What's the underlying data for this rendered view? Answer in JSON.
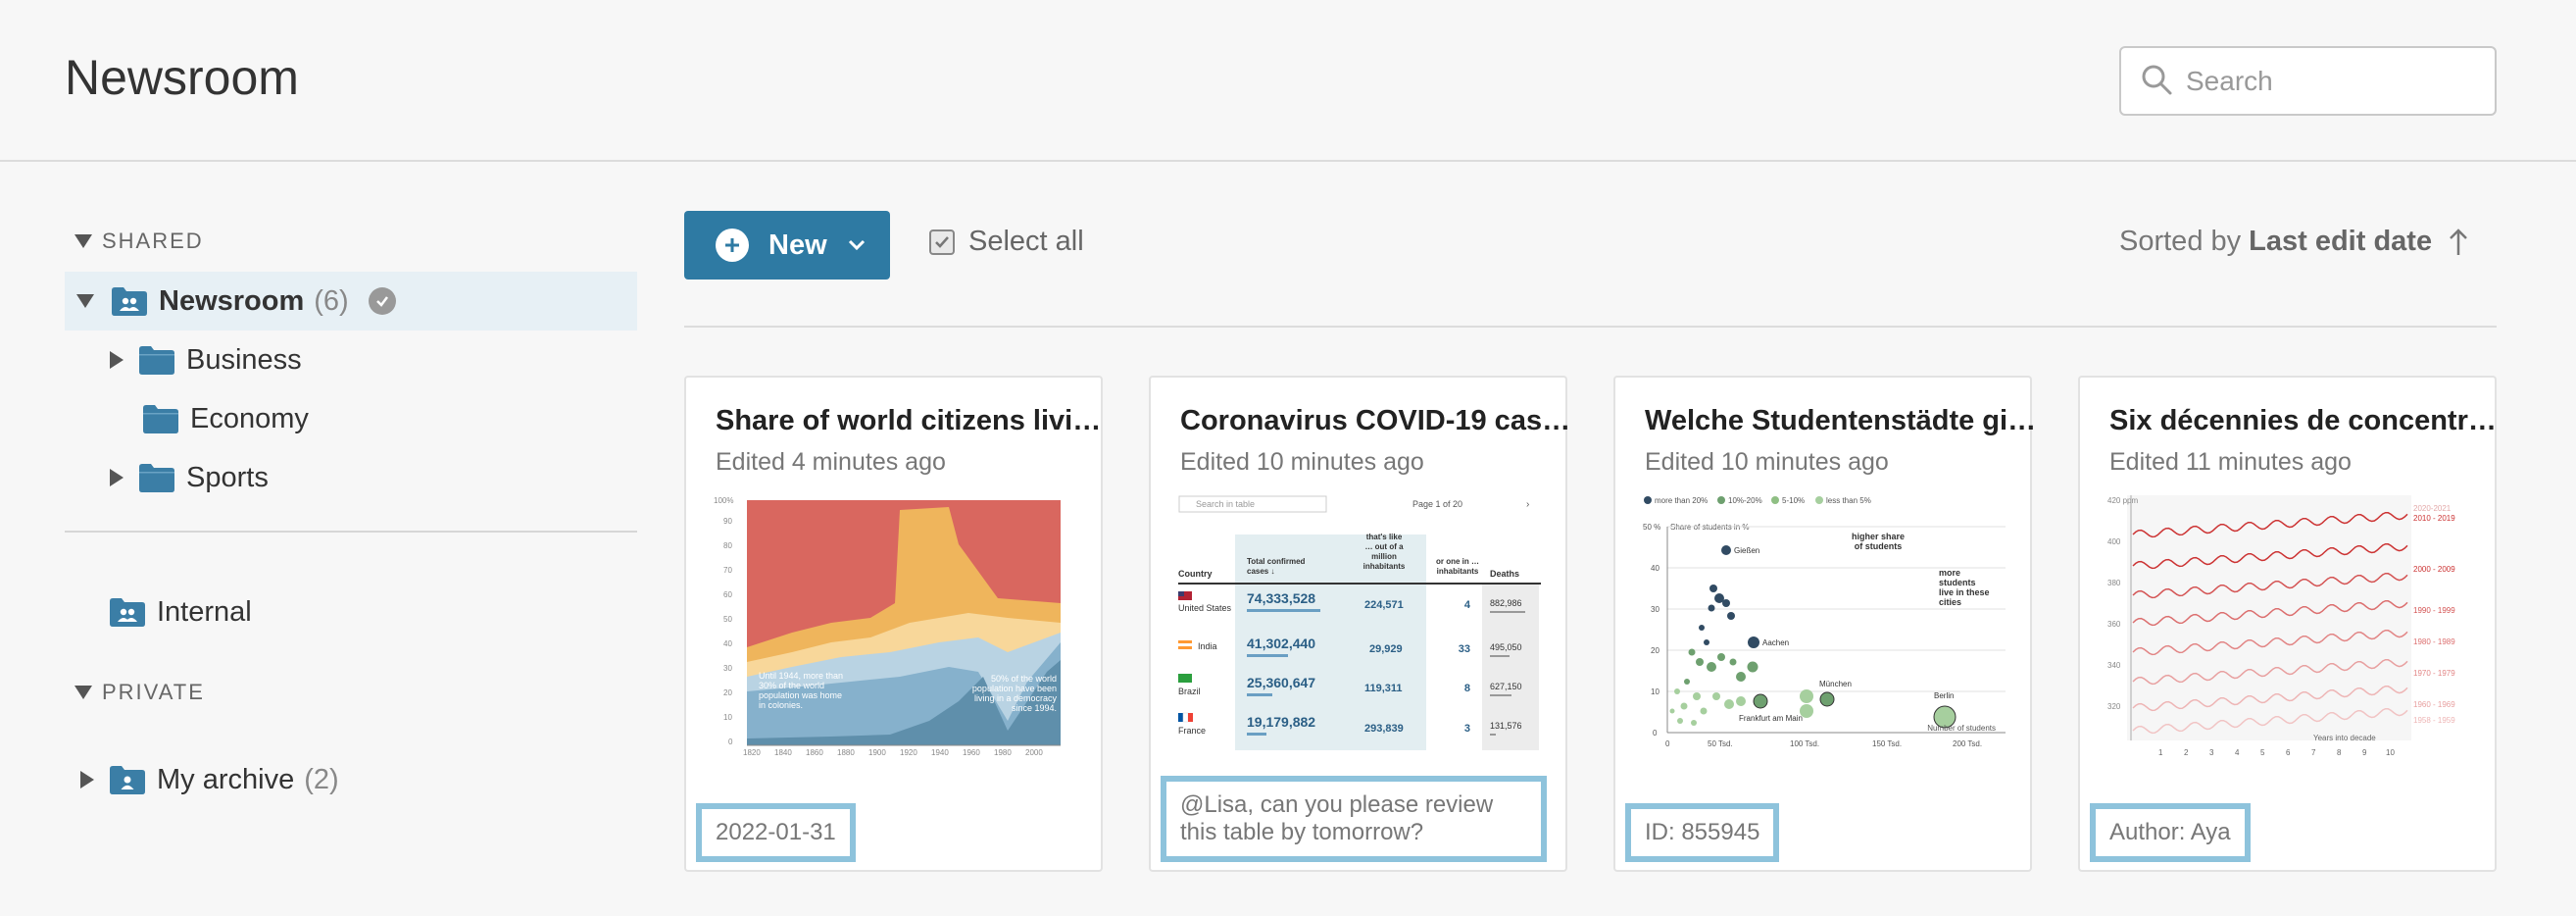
{
  "header": {
    "title": "Newsroom",
    "search_placeholder": "Search"
  },
  "sidebar": {
    "shared_label": "SHARED",
    "newsroom": {
      "label": "Newsroom",
      "count": "(6)"
    },
    "folders": [
      {
        "label": "Business"
      },
      {
        "label": "Economy"
      },
      {
        "label": "Sports"
      }
    ],
    "internal": {
      "label": "Internal"
    },
    "private_label": "PRIVATE",
    "archive": {
      "label": "My archive",
      "count": "(2)"
    }
  },
  "toolbar": {
    "new_label": "New",
    "select_all_label": "Select all",
    "sort_prefix": "Sorted by",
    "sort_field": "Last edit date"
  },
  "cards": [
    {
      "title": "Share of world citizens livi…",
      "edited": "Edited 4 minutes ago",
      "footer": "2022-01-31"
    },
    {
      "title": "Coronavirus COVID-19 cas…",
      "edited": "Edited 10 minutes ago",
      "footer": "@Lisa, can you please review this table by tomorrow?"
    },
    {
      "title": "Welche Studentenstädte gi…",
      "edited": "Edited 10 minutes ago",
      "footer": "ID: 855945"
    },
    {
      "title": "Six décennies de concentr…",
      "edited": "Edited 11 minutes ago",
      "footer": "Author: Aya"
    }
  ],
  "thumb_text": {
    "c1_ylabels": [
      "100%",
      "90",
      "80",
      "70",
      "60",
      "50",
      "40",
      "30",
      "20",
      "10",
      "0"
    ],
    "c1_xlabels": [
      "1820",
      "1840",
      "1860",
      "1880",
      "1900",
      "1920",
      "1940",
      "1960",
      "1980",
      "2000"
    ],
    "c1_note_left": "Until 1944, more than 30% of the world population was home in colonies.",
    "c1_note_right": "50% of the world population have been living in a democracy since 1994.",
    "c2_search": "Search in table",
    "c2_page": "Page 1 of 20",
    "c2_headers": [
      "Country",
      "Total confirmed cases",
      "that's like … out of a million inhabitants",
      "or one in … inhabitants",
      "Deaths"
    ],
    "c2_rows": [
      {
        "country": "United States",
        "cases": "74,333,528",
        "per_million": "224,571",
        "one_in": "4",
        "deaths": "882,986"
      },
      {
        "country": "India",
        "cases": "41,302,440",
        "per_million": "29,929",
        "one_in": "33",
        "deaths": "495,050"
      },
      {
        "country": "Brazil",
        "cases": "25,360,647",
        "per_million": "119,311",
        "one_in": "8",
        "deaths": "627,150"
      },
      {
        "country": "France",
        "cases": "19,179,882",
        "per_million": "293,839",
        "one_in": "3",
        "deaths": "131,576"
      }
    ],
    "c3_legend": [
      "more than 20%",
      "10%-20%",
      "5-10%",
      "less than 5%"
    ],
    "c3_ylabel": "Share of students in %",
    "c3_yticks": [
      "50 %",
      "40",
      "30",
      "20",
      "10",
      "0"
    ],
    "c3_xticks": [
      "0",
      "50 Tsd.",
      "100 Tsd.",
      "150 Tsd.",
      "200 Tsd."
    ],
    "c3_xlabel": "Number of students",
    "c3_ann1": "higher share of students",
    "c3_ann2": "more students live in these cities",
    "c3_cities": [
      "Gießen",
      "Aachen",
      "Frankfurt am Main",
      "München",
      "Berlin"
    ],
    "c4_yticks": [
      "420 ppm",
      "400",
      "380",
      "360",
      "340",
      "320"
    ],
    "c4_decades": [
      "2020-2021",
      "2010 - 2019",
      "2000 - 2009",
      "1990 - 1999",
      "1980 - 1989",
      "1970 - 1979",
      "1960 - 1969",
      "1958 - 1959"
    ],
    "c4_xticks": [
      "1",
      "2",
      "3",
      "4",
      "5",
      "6",
      "7",
      "8",
      "9",
      "10"
    ],
    "c4_xlabel": "Years into decade"
  },
  "colors": {
    "accent": "#2e7aa3",
    "folder": "#3b7ea6",
    "highlight_border": "#8ec3dc",
    "active_row": "#e7f0f5",
    "c1_red": "#d9675f",
    "c1_orange": "#efb55c",
    "c1_yellow": "#f8d79a",
    "c1_lightblue": "#b9d3e3",
    "c1_blue": "#86b1cc",
    "c1_darkblue": "#5f8fab",
    "c3_dark": "#314b63",
    "c3_green": "#6ea06f",
    "c3_light": "#a6cf9e",
    "c4_red": "#cc3333"
  }
}
